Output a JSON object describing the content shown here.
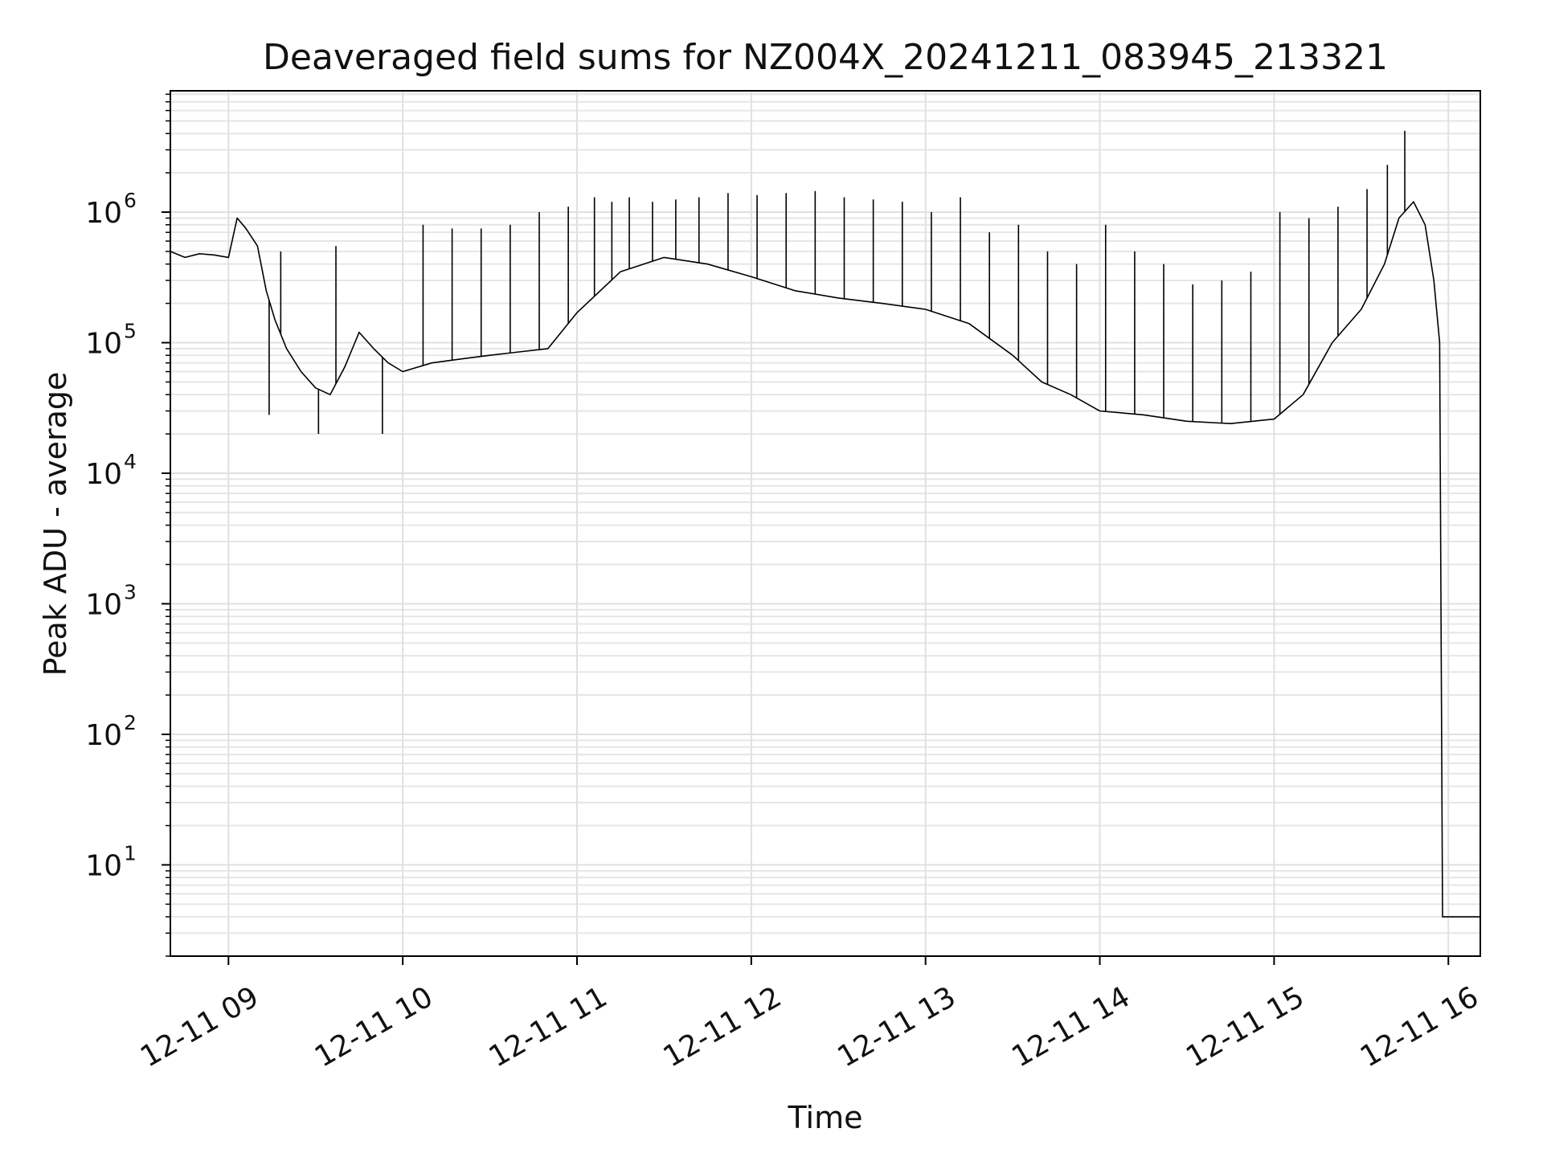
{
  "chart_data": {
    "type": "line",
    "title": "Deaveraged field sums for NZ004X_20241211_083945_213321",
    "xlabel": "Time",
    "ylabel": "Peak ADU - average",
    "x_axis": {
      "kind": "time",
      "range": [
        "2024-12-11 08:40",
        "2024-12-11 16:11"
      ],
      "ticks": [
        {
          "value": "2024-12-11 09:00",
          "label": "12-11 09"
        },
        {
          "value": "2024-12-11 10:00",
          "label": "12-11 10"
        },
        {
          "value": "2024-12-11 11:00",
          "label": "12-11 11"
        },
        {
          "value": "2024-12-11 12:00",
          "label": "12-11 12"
        },
        {
          "value": "2024-12-11 13:00",
          "label": "12-11 13"
        },
        {
          "value": "2024-12-11 14:00",
          "label": "12-11 14"
        },
        {
          "value": "2024-12-11 15:00",
          "label": "12-11 15"
        },
        {
          "value": "2024-12-11 16:00",
          "label": "12-11 16"
        }
      ]
    },
    "y_axis": {
      "scale": "log",
      "range": [
        2,
        8500000
      ],
      "ticks": [
        {
          "value": 10,
          "base": "10",
          "exp": "1"
        },
        {
          "value": 100,
          "base": "10",
          "exp": "2"
        },
        {
          "value": 1000,
          "base": "10",
          "exp": "3"
        },
        {
          "value": 10000,
          "base": "10",
          "exp": "4"
        },
        {
          "value": 100000,
          "base": "10",
          "exp": "5"
        },
        {
          "value": 1000000,
          "base": "10",
          "exp": "6"
        }
      ]
    },
    "grid": true,
    "line_color": "#000000",
    "series": [
      {
        "x": [
          "2024-12-11 08:40",
          "2024-12-11 08:45",
          "2024-12-11 08:50",
          "2024-12-11 08:55",
          "2024-12-11 09:00",
          "2024-12-11 09:03",
          "2024-12-11 09:06",
          "2024-12-11 09:10",
          "2024-12-11 09:13",
          "2024-12-11 09:16",
          "2024-12-11 09:20",
          "2024-12-11 09:25",
          "2024-12-11 09:30",
          "2024-12-11 09:35",
          "2024-12-11 09:40",
          "2024-12-11 09:45",
          "2024-12-11 09:50",
          "2024-12-11 09:55",
          "2024-12-11 10:00",
          "2024-12-11 10:10",
          "2024-12-11 10:20",
          "2024-12-11 10:30",
          "2024-12-11 10:40",
          "2024-12-11 10:50",
          "2024-12-11 11:00",
          "2024-12-11 11:15",
          "2024-12-11 11:30",
          "2024-12-11 11:45",
          "2024-12-11 12:00",
          "2024-12-11 12:15",
          "2024-12-11 12:30",
          "2024-12-11 12:45",
          "2024-12-11 13:00",
          "2024-12-11 13:15",
          "2024-12-11 13:30",
          "2024-12-11 13:40",
          "2024-12-11 13:50",
          "2024-12-11 14:00",
          "2024-12-11 14:15",
          "2024-12-11 14:30",
          "2024-12-11 14:45",
          "2024-12-11 15:00",
          "2024-12-11 15:10",
          "2024-12-11 15:20",
          "2024-12-11 15:30",
          "2024-12-11 15:38",
          "2024-12-11 15:43",
          "2024-12-11 15:48",
          "2024-12-11 15:52",
          "2024-12-11 15:55",
          "2024-12-11 15:57",
          "2024-12-11 15:58",
          "2024-12-11 16:05",
          "2024-12-11 16:11"
        ],
        "y": [
          500000,
          450000,
          480000,
          470000,
          450000,
          900000,
          750000,
          550000,
          250000,
          150000,
          90000,
          60000,
          45000,
          40000,
          65000,
          120000,
          90000,
          70000,
          60000,
          70000,
          75000,
          80000,
          85000,
          90000,
          170000,
          350000,
          450000,
          400000,
          320000,
          250000,
          220000,
          200000,
          180000,
          140000,
          80000,
          50000,
          40000,
          30000,
          28000,
          25000,
          24000,
          26000,
          40000,
          100000,
          180000,
          400000,
          900000,
          1200000,
          800000,
          300000,
          100000,
          4,
          4,
          4
        ]
      },
      {
        "x": [
          "2024-12-11 09:14",
          "2024-12-11 09:18",
          "2024-12-11 09:31",
          "2024-12-11 09:37",
          "2024-12-11 09:53",
          "2024-12-11 10:07",
          "2024-12-11 10:17",
          "2024-12-11 10:27",
          "2024-12-11 10:37",
          "2024-12-11 10:47",
          "2024-12-11 10:57",
          "2024-12-11 11:06",
          "2024-12-11 11:12",
          "2024-12-11 11:18",
          "2024-12-11 11:26",
          "2024-12-11 11:34",
          "2024-12-11 11:42",
          "2024-12-11 11:52",
          "2024-12-11 12:02",
          "2024-12-11 12:12",
          "2024-12-11 12:22",
          "2024-12-11 12:32",
          "2024-12-11 12:42",
          "2024-12-11 12:52",
          "2024-12-11 13:02",
          "2024-12-11 13:12",
          "2024-12-11 13:22",
          "2024-12-11 13:32",
          "2024-12-11 13:42",
          "2024-12-11 13:52",
          "2024-12-11 14:02",
          "2024-12-11 14:12",
          "2024-12-11 14:22",
          "2024-12-11 14:32",
          "2024-12-11 14:42",
          "2024-12-11 14:52",
          "2024-12-11 15:02",
          "2024-12-11 15:12",
          "2024-12-11 15:22",
          "2024-12-11 15:32",
          "2024-12-11 15:39",
          "2024-12-11 15:45"
        ],
        "y": [
          28000,
          500000,
          20000,
          550000,
          20000,
          800000,
          750000,
          750000,
          800000,
          1000000,
          1100000,
          1300000,
          1200000,
          1300000,
          1200000,
          1250000,
          1300000,
          1400000,
          1350000,
          1400000,
          1450000,
          1300000,
          1250000,
          1200000,
          1000000,
          1300000,
          700000,
          800000,
          500000,
          400000,
          800000,
          500000,
          400000,
          280000,
          300000,
          350000,
          1000000,
          900000,
          1100000,
          1500000,
          2300000,
          4200000
        ]
      }
    ]
  }
}
